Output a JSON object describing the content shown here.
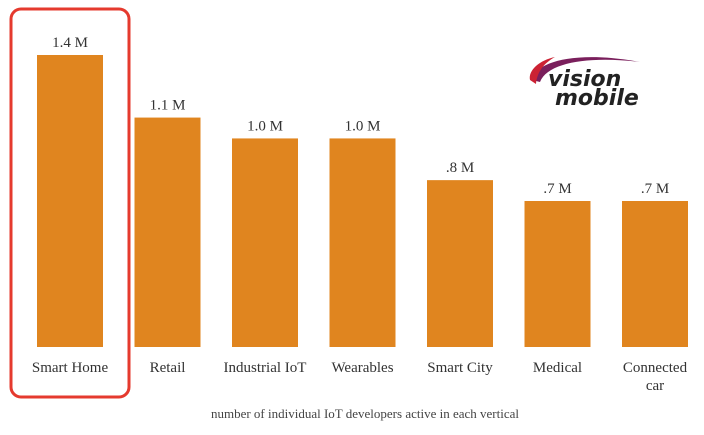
{
  "chart_data": {
    "type": "bar",
    "categories": [
      "Smart Home",
      "Retail",
      "Industrial IoT",
      "Wearables",
      "Smart City",
      "Medical",
      "Connected car"
    ],
    "values": [
      1.4,
      1.1,
      1.0,
      1.0,
      0.8,
      0.7,
      0.7
    ],
    "data_labels": [
      "1.4 M",
      "1.1 M",
      "1.0 M",
      "1.0 M",
      ".8 M",
      ".7 M",
      ".7 M"
    ],
    "xlabel": "number of individual IoT developers active in each vertical",
    "ylabel": "",
    "ylim": [
      0,
      1.4
    ],
    "grid": false,
    "highlighted_category": "Smart Home",
    "colors": {
      "bar": "#E0851F",
      "highlight_border": "#E53A2E"
    }
  },
  "logo": {
    "line1": "vision",
    "line2": "mobile",
    "swoosh_color": "#7A1F5C"
  }
}
